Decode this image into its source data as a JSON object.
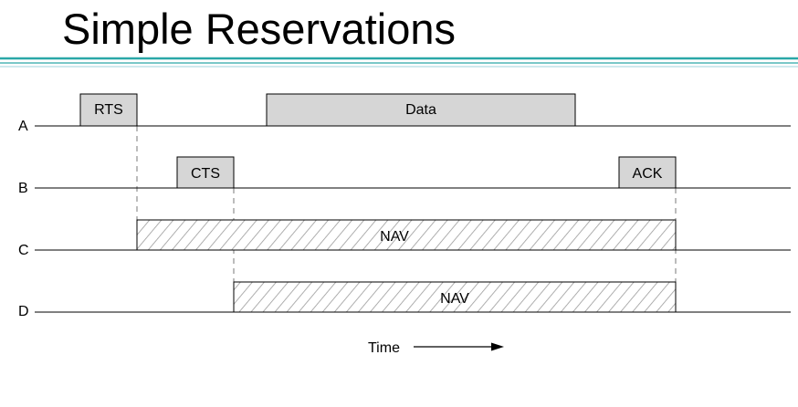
{
  "title": "Simple Reservations",
  "colors": {
    "rule_teal": "#2aa7a7",
    "rule_light": "#9fd6dd",
    "frame_fill": "#d6d6d6",
    "stroke": "#000000",
    "hatch": "#9a9a9a",
    "guide": "#7a7a7a"
  },
  "stations": [
    {
      "label": "A",
      "frames": [
        {
          "label": "RTS",
          "type": "frame"
        },
        {
          "label": "Data",
          "type": "frame"
        }
      ]
    },
    {
      "label": "B",
      "frames": [
        {
          "label": "CTS",
          "type": "frame"
        },
        {
          "label": "ACK",
          "type": "frame"
        }
      ]
    },
    {
      "label": "C",
      "frames": [
        {
          "label": "NAV",
          "type": "nav"
        }
      ]
    },
    {
      "label": "D",
      "frames": [
        {
          "label": "NAV",
          "type": "nav"
        }
      ]
    }
  ],
  "time_label": "Time"
}
